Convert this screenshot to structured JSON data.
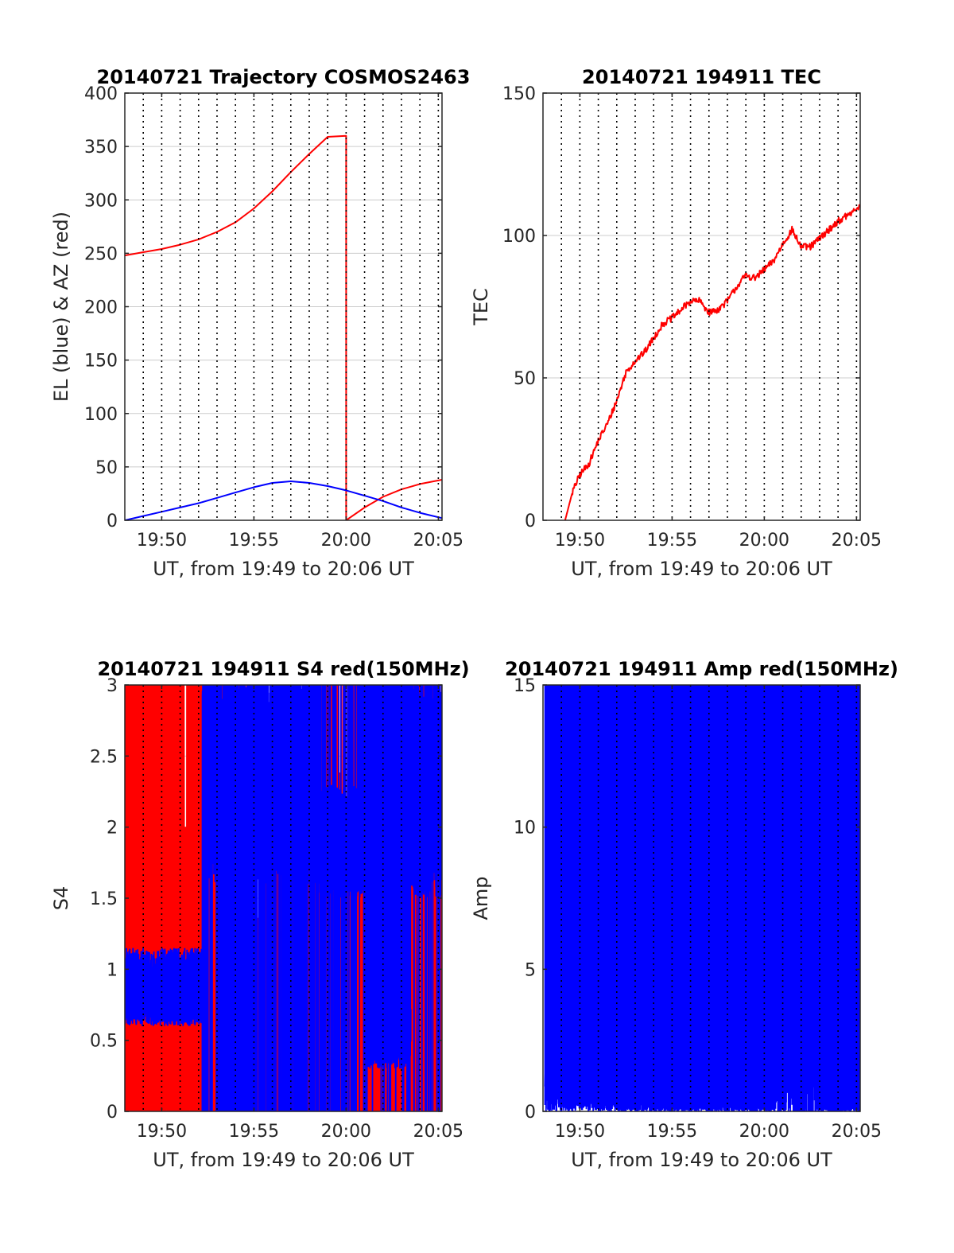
{
  "colors": {
    "red": "#ff0000",
    "blue": "#0000ff",
    "grid": "#cccccc",
    "axis": "#262626"
  },
  "chart_data": [
    {
      "id": "trajectory",
      "type": "line",
      "title": "20140721 Trajectory COSMOS2463",
      "xlabel": "UT, from 19:49 to 20:06 UT",
      "ylabel": "EL (blue) & AZ (red)",
      "xlim": [
        19.0,
        36.2
      ],
      "ylim": [
        0,
        400
      ],
      "xticks": [
        21,
        26,
        31,
        36
      ],
      "xticklabels": [
        "19:50",
        "19:55",
        "20:00",
        "20:05"
      ],
      "yticks": [
        0,
        50,
        100,
        150,
        200,
        250,
        300,
        350,
        400
      ],
      "yticklabels": [
        "0",
        "50",
        "100",
        "150",
        "200",
        "250",
        "300",
        "350",
        "400"
      ],
      "x_dotted_lines": [
        20,
        21,
        22,
        23,
        24,
        25,
        26,
        27,
        28,
        29,
        30,
        31,
        32,
        33,
        34,
        35,
        36
      ],
      "grid": "horizontal",
      "series": [
        {
          "color": "red",
          "x": [
            19.0,
            20.0,
            21.0,
            22.0,
            23.0,
            24.0,
            25.0,
            26.0,
            27.0,
            28.0,
            29.0,
            30.0,
            31.0,
            31.0,
            32.0,
            33.0,
            34.0,
            35.0,
            36.2
          ],
          "y": [
            248,
            251,
            254,
            258,
            263,
            270,
            279,
            292,
            308,
            326,
            343,
            359,
            360,
            0,
            12,
            22,
            29,
            34,
            38
          ]
        },
        {
          "color": "blue",
          "x": [
            19.0,
            20.0,
            21.0,
            22.0,
            23.0,
            24.0,
            25.0,
            26.0,
            27.0,
            28.0,
            29.0,
            30.0,
            31.0,
            32.0,
            33.0,
            34.0,
            35.0,
            36.2
          ],
          "y": [
            0,
            4,
            8,
            12,
            16,
            21,
            26,
            31,
            35,
            36.5,
            35,
            32,
            28,
            23,
            18,
            12,
            7,
            2
          ]
        }
      ]
    },
    {
      "id": "tec",
      "type": "line",
      "title": "20140721 194911 TEC",
      "xlabel": "UT, from 19:49 to 20:06 UT",
      "ylabel": "TEC",
      "xlim": [
        19.0,
        36.2
      ],
      "ylim": [
        0,
        150
      ],
      "xticks": [
        21,
        26,
        31,
        36
      ],
      "xticklabels": [
        "19:50",
        "19:55",
        "20:00",
        "20:05"
      ],
      "yticks": [
        0,
        50,
        100,
        150
      ],
      "yticklabels": [
        "0",
        "50",
        "100",
        "150"
      ],
      "x_dotted_lines": [
        20,
        21,
        22,
        23,
        24,
        25,
        26,
        27,
        28,
        29,
        30,
        31,
        32,
        33,
        34,
        35,
        36
      ],
      "grid": "horizontal",
      "noise": 1.2,
      "series": [
        {
          "color": "red",
          "x": [
            20.2,
            20.6,
            21.0,
            21.5,
            22.0,
            22.5,
            23.0,
            23.5,
            24.0,
            24.5,
            25.0,
            25.5,
            26.0,
            26.5,
            27.0,
            27.5,
            28.0,
            28.5,
            29.0,
            29.5,
            30.0,
            30.5,
            31.0,
            31.5,
            32.0,
            32.5,
            33.0,
            33.5,
            34.0,
            34.5,
            35.0,
            35.5,
            36.2
          ],
          "y": [
            0,
            10,
            16,
            20,
            28,
            34,
            42,
            52,
            56,
            59,
            64,
            69,
            71,
            74,
            77,
            77,
            73,
            74,
            77,
            82,
            86,
            85,
            88,
            91,
            97,
            102,
            96,
            96,
            99,
            102,
            105,
            107,
            110
          ]
        }
      ]
    },
    {
      "id": "s4",
      "type": "line",
      "title": "20140721 194911 S4 red(150MHz)",
      "xlabel": "UT, from 19:49 to 20:06 UT",
      "ylabel": "S4",
      "xlim": [
        19.0,
        36.2
      ],
      "ylim": [
        0,
        3
      ],
      "xticks": [
        21,
        26,
        31,
        36
      ],
      "xticklabels": [
        "19:50",
        "19:55",
        "20:00",
        "20:05"
      ],
      "yticks": [
        0,
        0.5,
        1,
        1.5,
        2,
        2.5,
        3
      ],
      "yticklabels": [
        "0",
        "0.5",
        "1",
        "1.5",
        "2",
        "2.5",
        "3"
      ],
      "x_dotted_lines": [
        20,
        21,
        22,
        23,
        24,
        25,
        26,
        27,
        28,
        29,
        30,
        31,
        32,
        33,
        34,
        35,
        36
      ],
      "grid": "horizontal",
      "series": [
        {
          "color": "red",
          "style": "spikes",
          "x_range": [
            19.0,
            36.2
          ],
          "low": 0,
          "high": 3,
          "density": 260,
          "segments": [
            [
              19.0,
              23.9,
              0.95
            ],
            [
              23.9,
              28.0,
              0.35
            ],
            [
              28.0,
              31.0,
              0.5
            ],
            [
              31.0,
              33.0,
              0.85
            ],
            [
              33.0,
              36.2,
              0.75
            ]
          ]
        },
        {
          "color": "blue",
          "style": "band",
          "segments": [
            [
              19.0,
              23.2,
              0.6,
              1.15,
              0.0,
              0.0
            ],
            [
              23.2,
              29.5,
              1.6,
              3.0,
              0.25,
              0.3
            ],
            [
              29.5,
              32.0,
              1.5,
              2.3,
              0.12,
              0.15
            ],
            [
              32.0,
              34.5,
              0.3,
              0.8,
              0.05,
              0.5
            ],
            [
              34.5,
              36.2,
              1.5,
              3.0,
              0.1,
              0.2
            ]
          ]
        }
      ]
    },
    {
      "id": "amp",
      "type": "line",
      "title": "20140721 194911 Amp red(150MHz)",
      "xlabel": "UT, from 19:49 to 20:06 UT",
      "ylabel": "Amp",
      "xlim": [
        19.0,
        36.2
      ],
      "ylim": [
        0,
        15
      ],
      "xticks": [
        21,
        26,
        31,
        36
      ],
      "xticklabels": [
        "19:50",
        "19:55",
        "20:00",
        "20:05"
      ],
      "yticks": [
        0,
        5,
        10,
        15
      ],
      "yticklabels": [
        "0",
        "5",
        "10",
        "15"
      ],
      "x_dotted_lines": [
        20,
        21,
        22,
        23,
        24,
        25,
        26,
        27,
        28,
        29,
        30,
        31,
        32,
        33,
        34,
        35,
        36
      ],
      "grid": "horizontal",
      "series": [
        {
          "color": "blue",
          "style": "band",
          "segments": [
            [
              19.1,
              23.0,
              0.0,
              2.3,
              0.03,
              0.8
            ],
            [
              23.0,
              31.6,
              0.0,
              0.9,
              0.06,
              0.9
            ],
            [
              31.6,
              33.8,
              0.0,
              7.0,
              0.12,
              3.2
            ],
            [
              33.8,
              36.2,
              0.0,
              0.8,
              0.06,
              0.6
            ]
          ],
          "peaks": [
            [
              20.0,
              3.3
            ],
            [
              22.7,
              2.8
            ],
            [
              26.7,
              1.7
            ],
            [
              28.7,
              2.6
            ],
            [
              32.1,
              9.6
            ],
            [
              32.8,
              10.8
            ],
            [
              33.1,
              8.6
            ],
            [
              33.6,
              7.3
            ],
            [
              30.5,
              1.3
            ],
            [
              35.4,
              1.3
            ]
          ]
        }
      ]
    }
  ]
}
